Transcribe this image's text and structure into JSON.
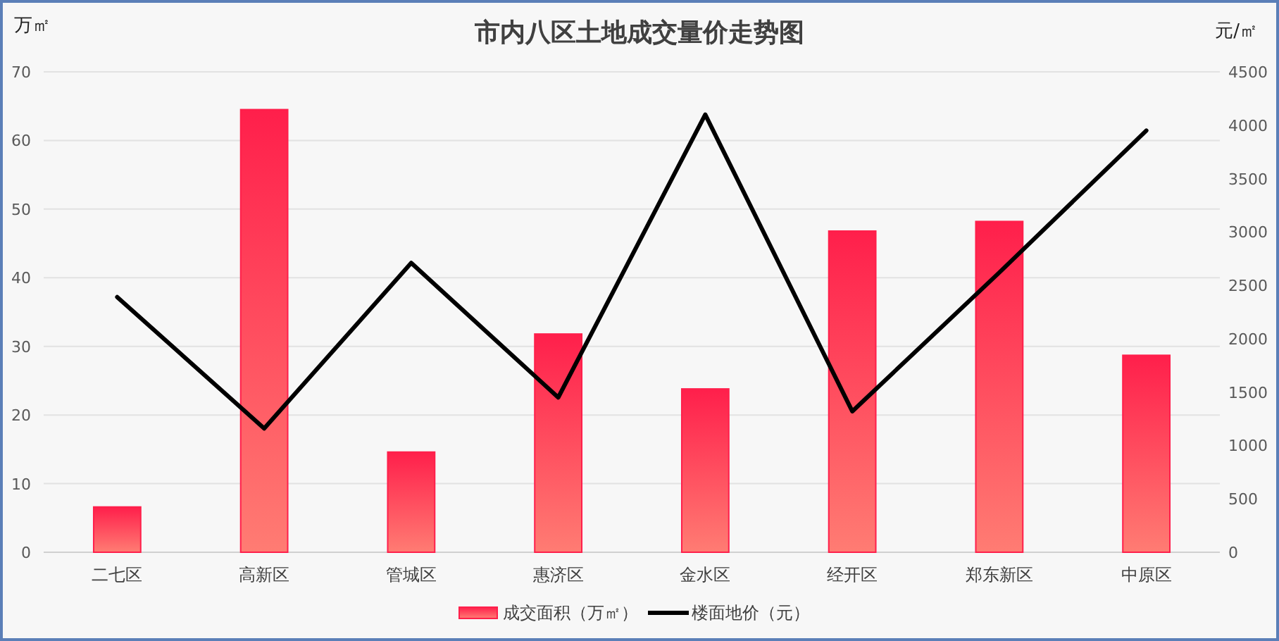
{
  "chart_data": {
    "type": "bar",
    "title": "市内八区土地成交量价走势图",
    "ylabel": "万㎡",
    "y2label": "元/㎡",
    "categories": [
      "二七区",
      "高新区",
      "管城区",
      "惠济区",
      "金水区",
      "经开区",
      "郑东新区",
      "中原区"
    ],
    "series": [
      {
        "name": "成交面积（万㎡）",
        "color": "#ff1f4b",
        "values": [
          6.6,
          64.5,
          14.6,
          31.8,
          23.8,
          46.8,
          48.2,
          28.7
        ]
      },
      {
        "name": "楼面地价（元）",
        "type": "line",
        "axis": "y2",
        "color": "#000000",
        "values": [
          2390,
          1160,
          2710,
          1450,
          4100,
          1320,
          2620,
          3950
        ]
      }
    ],
    "ylim": [
      0,
      70
    ],
    "yticks": [
      0,
      10,
      20,
      30,
      40,
      50,
      60,
      70
    ],
    "y2lim": [
      0,
      4500
    ],
    "y2ticks": [
      0,
      500,
      1000,
      1500,
      2000,
      2500,
      3000,
      3500,
      4000,
      4500
    ],
    "grid": "y",
    "legend": "bottom",
    "marker": "none",
    "line_style": "solid"
  }
}
